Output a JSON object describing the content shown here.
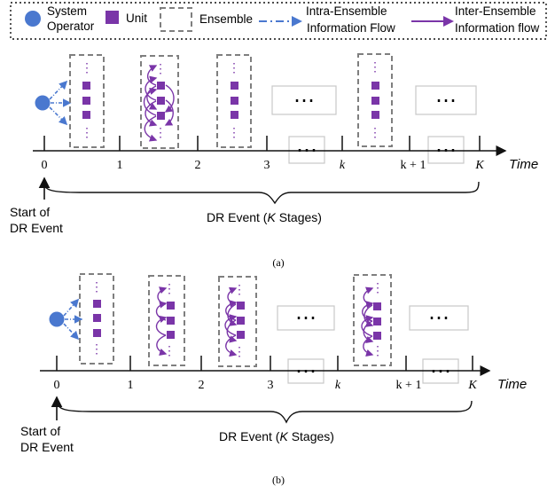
{
  "colors": {
    "operator": "#4a78cf",
    "unit": "#7a35a8",
    "ensemble_border": "#7f7f7f",
    "intra_flow": "#4a78cf",
    "inter_flow": "#7a35a8",
    "axis": "#111111",
    "gap_box_border": "#c8c8c8"
  },
  "legend": {
    "operator_label_line1": "System",
    "operator_label_line2": "Operator",
    "unit_label": "Unit",
    "ensemble_label": "Ensemble",
    "intra_label_line1": "Intra-Ensemble",
    "intra_label_line2": "Information Flow",
    "inter_label_line1": "Inter-Ensemble",
    "inter_label_line2": "Information flow"
  },
  "icons": {
    "operator": "blue-circle",
    "unit": "purple-square",
    "ensemble": "dashed-gray-box",
    "intra_flow": "dash-dot-blue-arrow",
    "inter_flow": "solid-purple-arrow"
  },
  "common": {
    "ellipsis": "⋯",
    "vertical_ellipsis": "⋮",
    "time_label": "Time",
    "start_label_line1": "Start of",
    "start_label_line2": "DR Event",
    "dr_event_prefix": "DR Event (",
    "dr_event_var": "K",
    "dr_event_suffix": " Stages)"
  },
  "panels": [
    {
      "caption": "(a)",
      "ticks": [
        "0",
        "1",
        "2",
        "3",
        "k",
        "k + 1",
        "K"
      ]
    },
    {
      "caption": "(b)",
      "ticks": [
        "0",
        "1",
        "2",
        "3",
        "k",
        "k + 1",
        "K"
      ]
    }
  ]
}
